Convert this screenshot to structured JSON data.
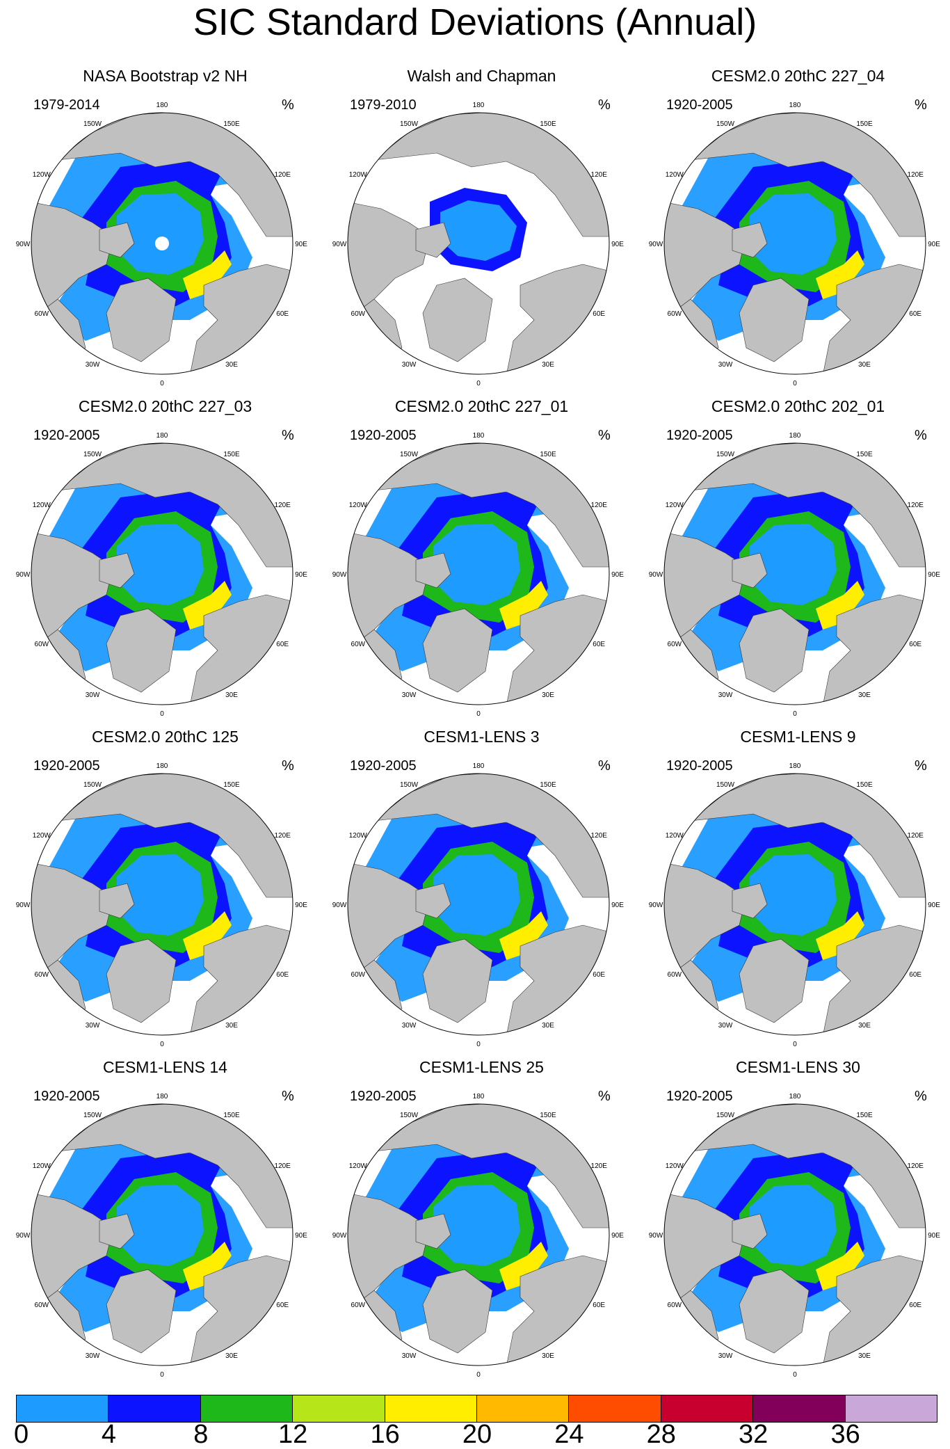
{
  "title": "SIC Standard Deviations (Annual)",
  "unit": "%",
  "longitude_labels": [
    "180",
    "150E",
    "120E",
    "90E",
    "60E",
    "30E",
    "0",
    "30W",
    "60W",
    "90W",
    "120W",
    "150W"
  ],
  "panels": [
    {
      "title": "NASA Bootstrap v2 NH",
      "period": "1979-2014"
    },
    {
      "title": "Walsh and Chapman",
      "period": "1979-2010"
    },
    {
      "title": "CESM2.0 20thC 227_04",
      "period": "1920-2005"
    },
    {
      "title": "CESM2.0 20thC 227_03",
      "period": "1920-2005"
    },
    {
      "title": "CESM2.0 20thC 227_01",
      "period": "1920-2005"
    },
    {
      "title": "CESM2.0 20thC 202_01",
      "period": "1920-2005"
    },
    {
      "title": "CESM2.0 20thC 125",
      "period": "1920-2005"
    },
    {
      "title": "CESM1-LENS 3",
      "period": "1920-2005"
    },
    {
      "title": "CESM1-LENS 9",
      "period": "1920-2005"
    },
    {
      "title": "CESM1-LENS 14",
      "period": "1920-2005"
    },
    {
      "title": "CESM1-LENS 25",
      "period": "1920-2005"
    },
    {
      "title": "CESM1-LENS 30",
      "period": "1920-2005"
    }
  ],
  "colorbar": {
    "levels": [
      "0",
      "4",
      "8",
      "12",
      "16",
      "20",
      "24",
      "28",
      "32",
      "36"
    ],
    "colors": [
      "#1e9bff",
      "#0c14ff",
      "#1fb81b",
      "#b6e61a",
      "#ffee00",
      "#ffb900",
      "#ff4d00",
      "#c8002f",
      "#820059",
      "#c9a7d9"
    ]
  },
  "map_colors": {
    "land": "#c0c0c0",
    "low_variability": "#1e9bff",
    "mid_variability": "#0c14ff",
    "high_variability": "#1fb81b",
    "peak_variability": "#ffee00",
    "pole_hole": "#ffffff"
  }
}
